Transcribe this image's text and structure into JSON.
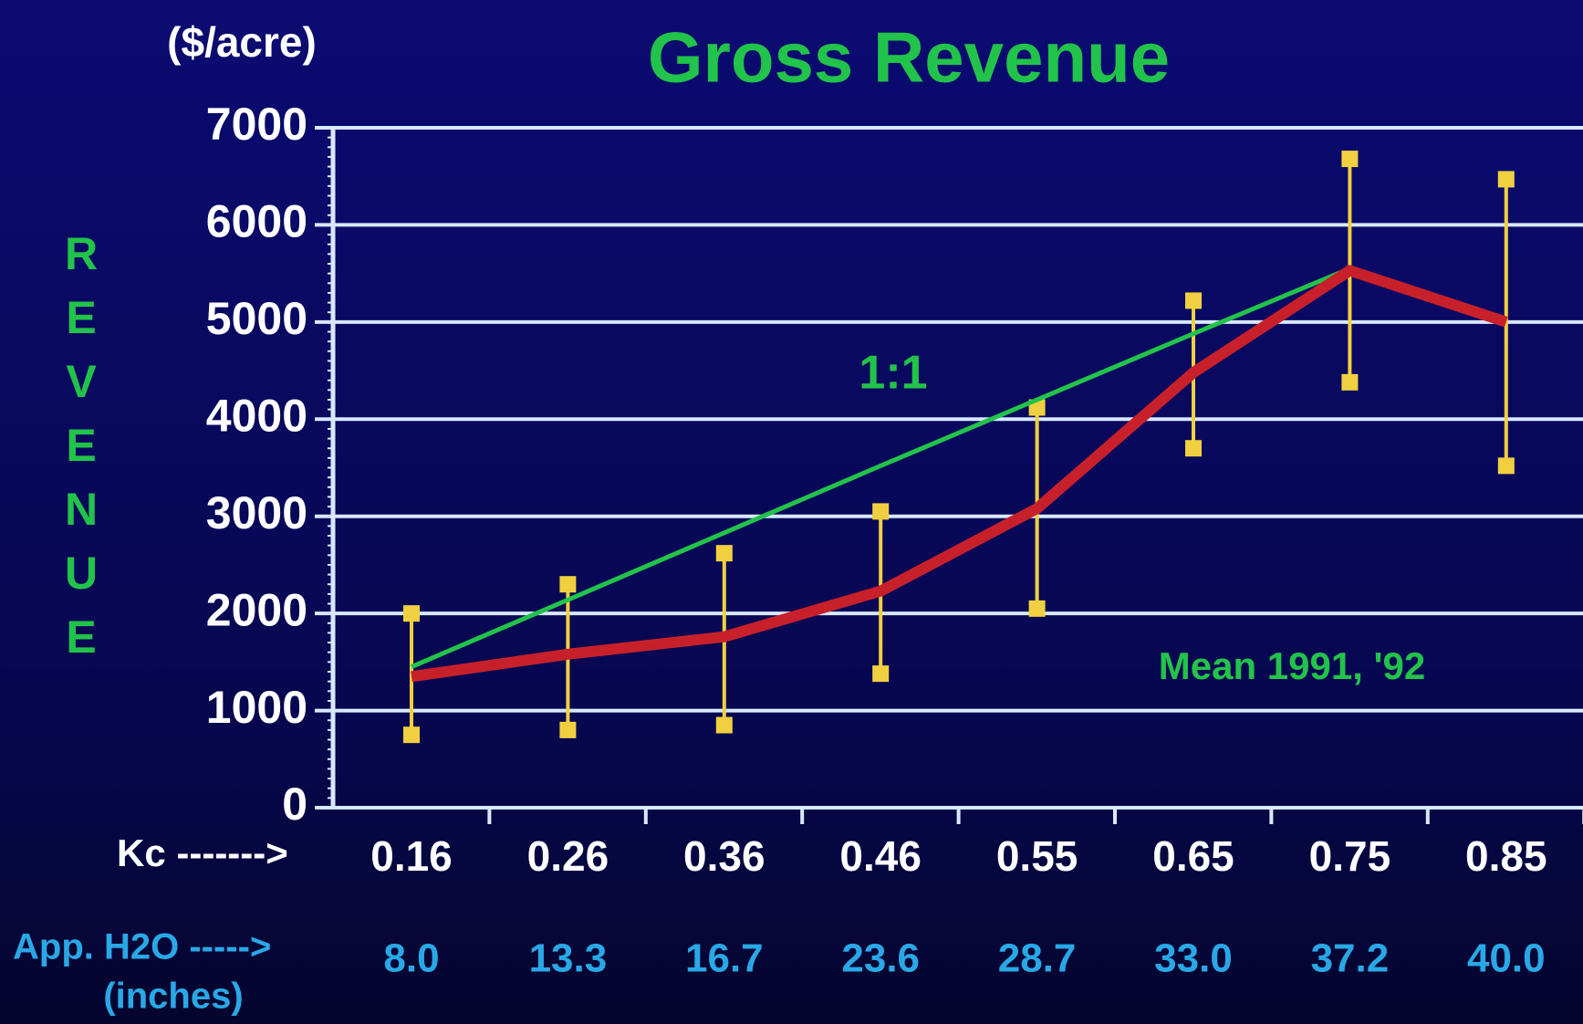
{
  "chart_data": {
    "type": "line",
    "title": "Gross Revenue",
    "y_unit": "($/acre)",
    "ylabel": "REVENUE",
    "categories": [
      "0.16",
      "0.26",
      "0.36",
      "0.46",
      "0.55",
      "0.65",
      "0.75",
      "0.85"
    ],
    "category_row_label": "Kc ------->",
    "second_row_label": "App. H2O ----->",
    "second_row_unit": "(inches)",
    "second_row": [
      "8.0",
      "13.3",
      "16.7",
      "23.6",
      "28.7",
      "33.0",
      "37.2",
      "40.0"
    ],
    "series": [
      {
        "name": "1:1",
        "color": "#22c34a",
        "values": [
          1450,
          2140,
          2830,
          3520,
          4200,
          4880,
          5550,
          null
        ]
      },
      {
        "name": "Mean 1991, '92",
        "color": "#c8202a",
        "values": [
          1350,
          1580,
          1760,
          2230,
          3080,
          4480,
          5530,
          5000
        ],
        "low": [
          750,
          800,
          850,
          1380,
          2050,
          3700,
          4380,
          3520
        ],
        "high": [
          2000,
          2300,
          2620,
          3050,
          4120,
          5220,
          6680,
          6470
        ],
        "error_color": "#f0d040"
      }
    ],
    "ylim": [
      0,
      7000
    ],
    "yticks": [
      0,
      1000,
      2000,
      3000,
      4000,
      5000,
      6000,
      7000
    ],
    "grid": true
  }
}
